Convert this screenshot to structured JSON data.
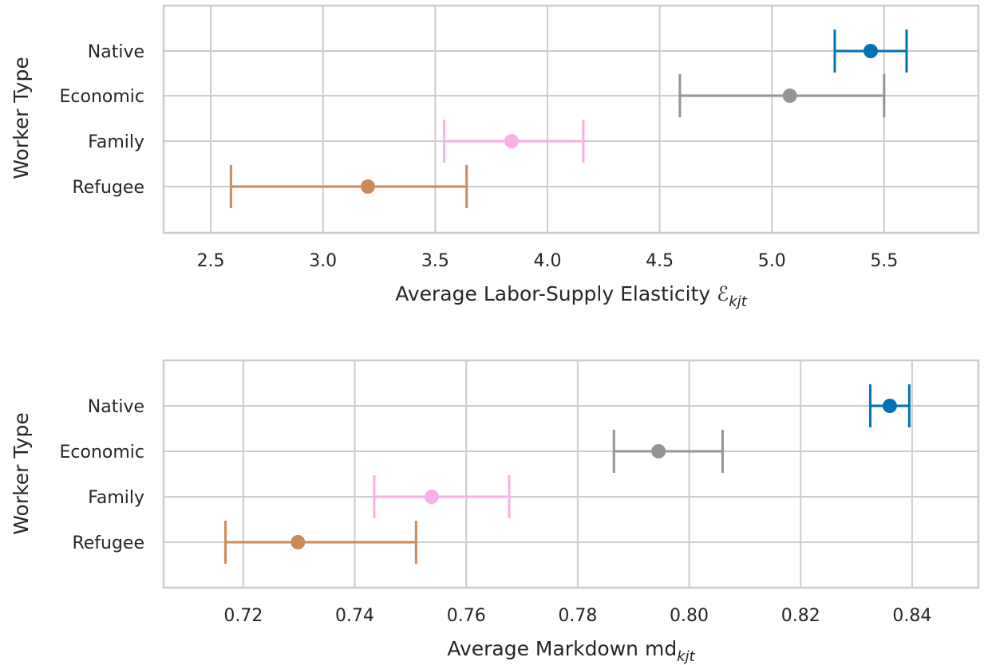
{
  "chart_data": [
    {
      "type": "scatter",
      "title": "",
      "xlabel": "Average Labor-Supply Elasticity ",
      "xlabel_math": "ℰ",
      "xlabel_sub": "kjt",
      "ylabel": "Worker Type",
      "xlim": [
        2.29,
        5.92
      ],
      "xticks": [
        2.5,
        3.0,
        3.5,
        4.0,
        4.5,
        5.0,
        5.5
      ],
      "xtick_labels": [
        "2.5",
        "3.0",
        "3.5",
        "4.0",
        "4.5",
        "5.0",
        "5.5"
      ],
      "categories": [
        "Native",
        "Economic",
        "Family",
        "Refugee"
      ],
      "points": [
        {
          "category": "Native",
          "value": 5.44,
          "ci_low": 5.28,
          "ci_high": 5.6,
          "color": "#0173b2"
        },
        {
          "category": "Economic",
          "value": 5.08,
          "ci_low": 4.59,
          "ci_high": 5.5,
          "color": "#949494"
        },
        {
          "category": "Family",
          "value": 3.84,
          "ci_low": 3.54,
          "ci_high": 4.16,
          "color": "#fbafe4"
        },
        {
          "category": "Refugee",
          "value": 3.2,
          "ci_low": 2.59,
          "ci_high": 3.64,
          "color": "#cc8a5a"
        }
      ],
      "grid": true,
      "legend": "none"
    },
    {
      "type": "scatter",
      "title": "",
      "xlabel": "Average Markdown md",
      "xlabel_math": "",
      "xlabel_sub": "kjt",
      "ylabel": "Worker Type",
      "xlim": [
        0.7057,
        0.8519
      ],
      "xticks": [
        0.72,
        0.74,
        0.76,
        0.78,
        0.8,
        0.82,
        0.84
      ],
      "xtick_labels": [
        "0.72",
        "0.74",
        "0.76",
        "0.78",
        "0.80",
        "0.82",
        "0.84"
      ],
      "categories": [
        "Native",
        "Economic",
        "Family",
        "Refugee"
      ],
      "points": [
        {
          "category": "Native",
          "value": 0.836,
          "ci_low": 0.8325,
          "ci_high": 0.8395,
          "color": "#0173b2"
        },
        {
          "category": "Economic",
          "value": 0.7945,
          "ci_low": 0.7865,
          "ci_high": 0.806,
          "color": "#949494"
        },
        {
          "category": "Family",
          "value": 0.7538,
          "ci_low": 0.7435,
          "ci_high": 0.7677,
          "color": "#fbafe4"
        },
        {
          "category": "Refugee",
          "value": 0.7298,
          "ci_low": 0.7168,
          "ci_high": 0.751,
          "color": "#cc8a5a"
        }
      ],
      "grid": true,
      "legend": "none"
    }
  ]
}
